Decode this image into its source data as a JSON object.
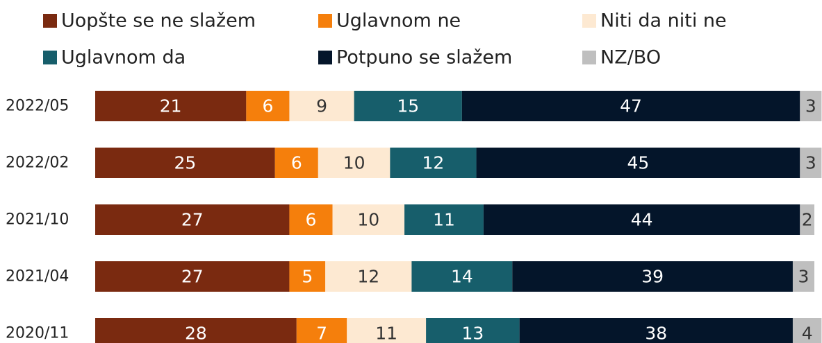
{
  "chart_data": {
    "type": "stacked-bar-horizontal",
    "categories": [
      "2022/05",
      "2022/02",
      "2021/10",
      "2021/04",
      "2020/11"
    ],
    "series": [
      {
        "name": "Uopšte se ne slažem",
        "color": "#7a2a10",
        "values": [
          21,
          25,
          27,
          27,
          28
        ]
      },
      {
        "name": "Uglavnom ne",
        "color": "#f57f0c",
        "values": [
          6,
          6,
          6,
          5,
          7
        ]
      },
      {
        "name": "Niti da niti ne",
        "color": "#fde9d2",
        "values": [
          9,
          10,
          10,
          12,
          11
        ]
      },
      {
        "name": "Uglavnom da",
        "color": "#175e6b",
        "values": [
          15,
          12,
          11,
          14,
          13
        ]
      },
      {
        "name": "Potpuno se slažem",
        "color": "#04152a",
        "values": [
          47,
          45,
          44,
          39,
          38
        ]
      },
      {
        "name": "NZ/BO",
        "color": "#bfbfbf",
        "values": [
          3,
          3,
          2,
          3,
          4
        ]
      }
    ],
    "xlim": [
      0,
      100
    ]
  }
}
